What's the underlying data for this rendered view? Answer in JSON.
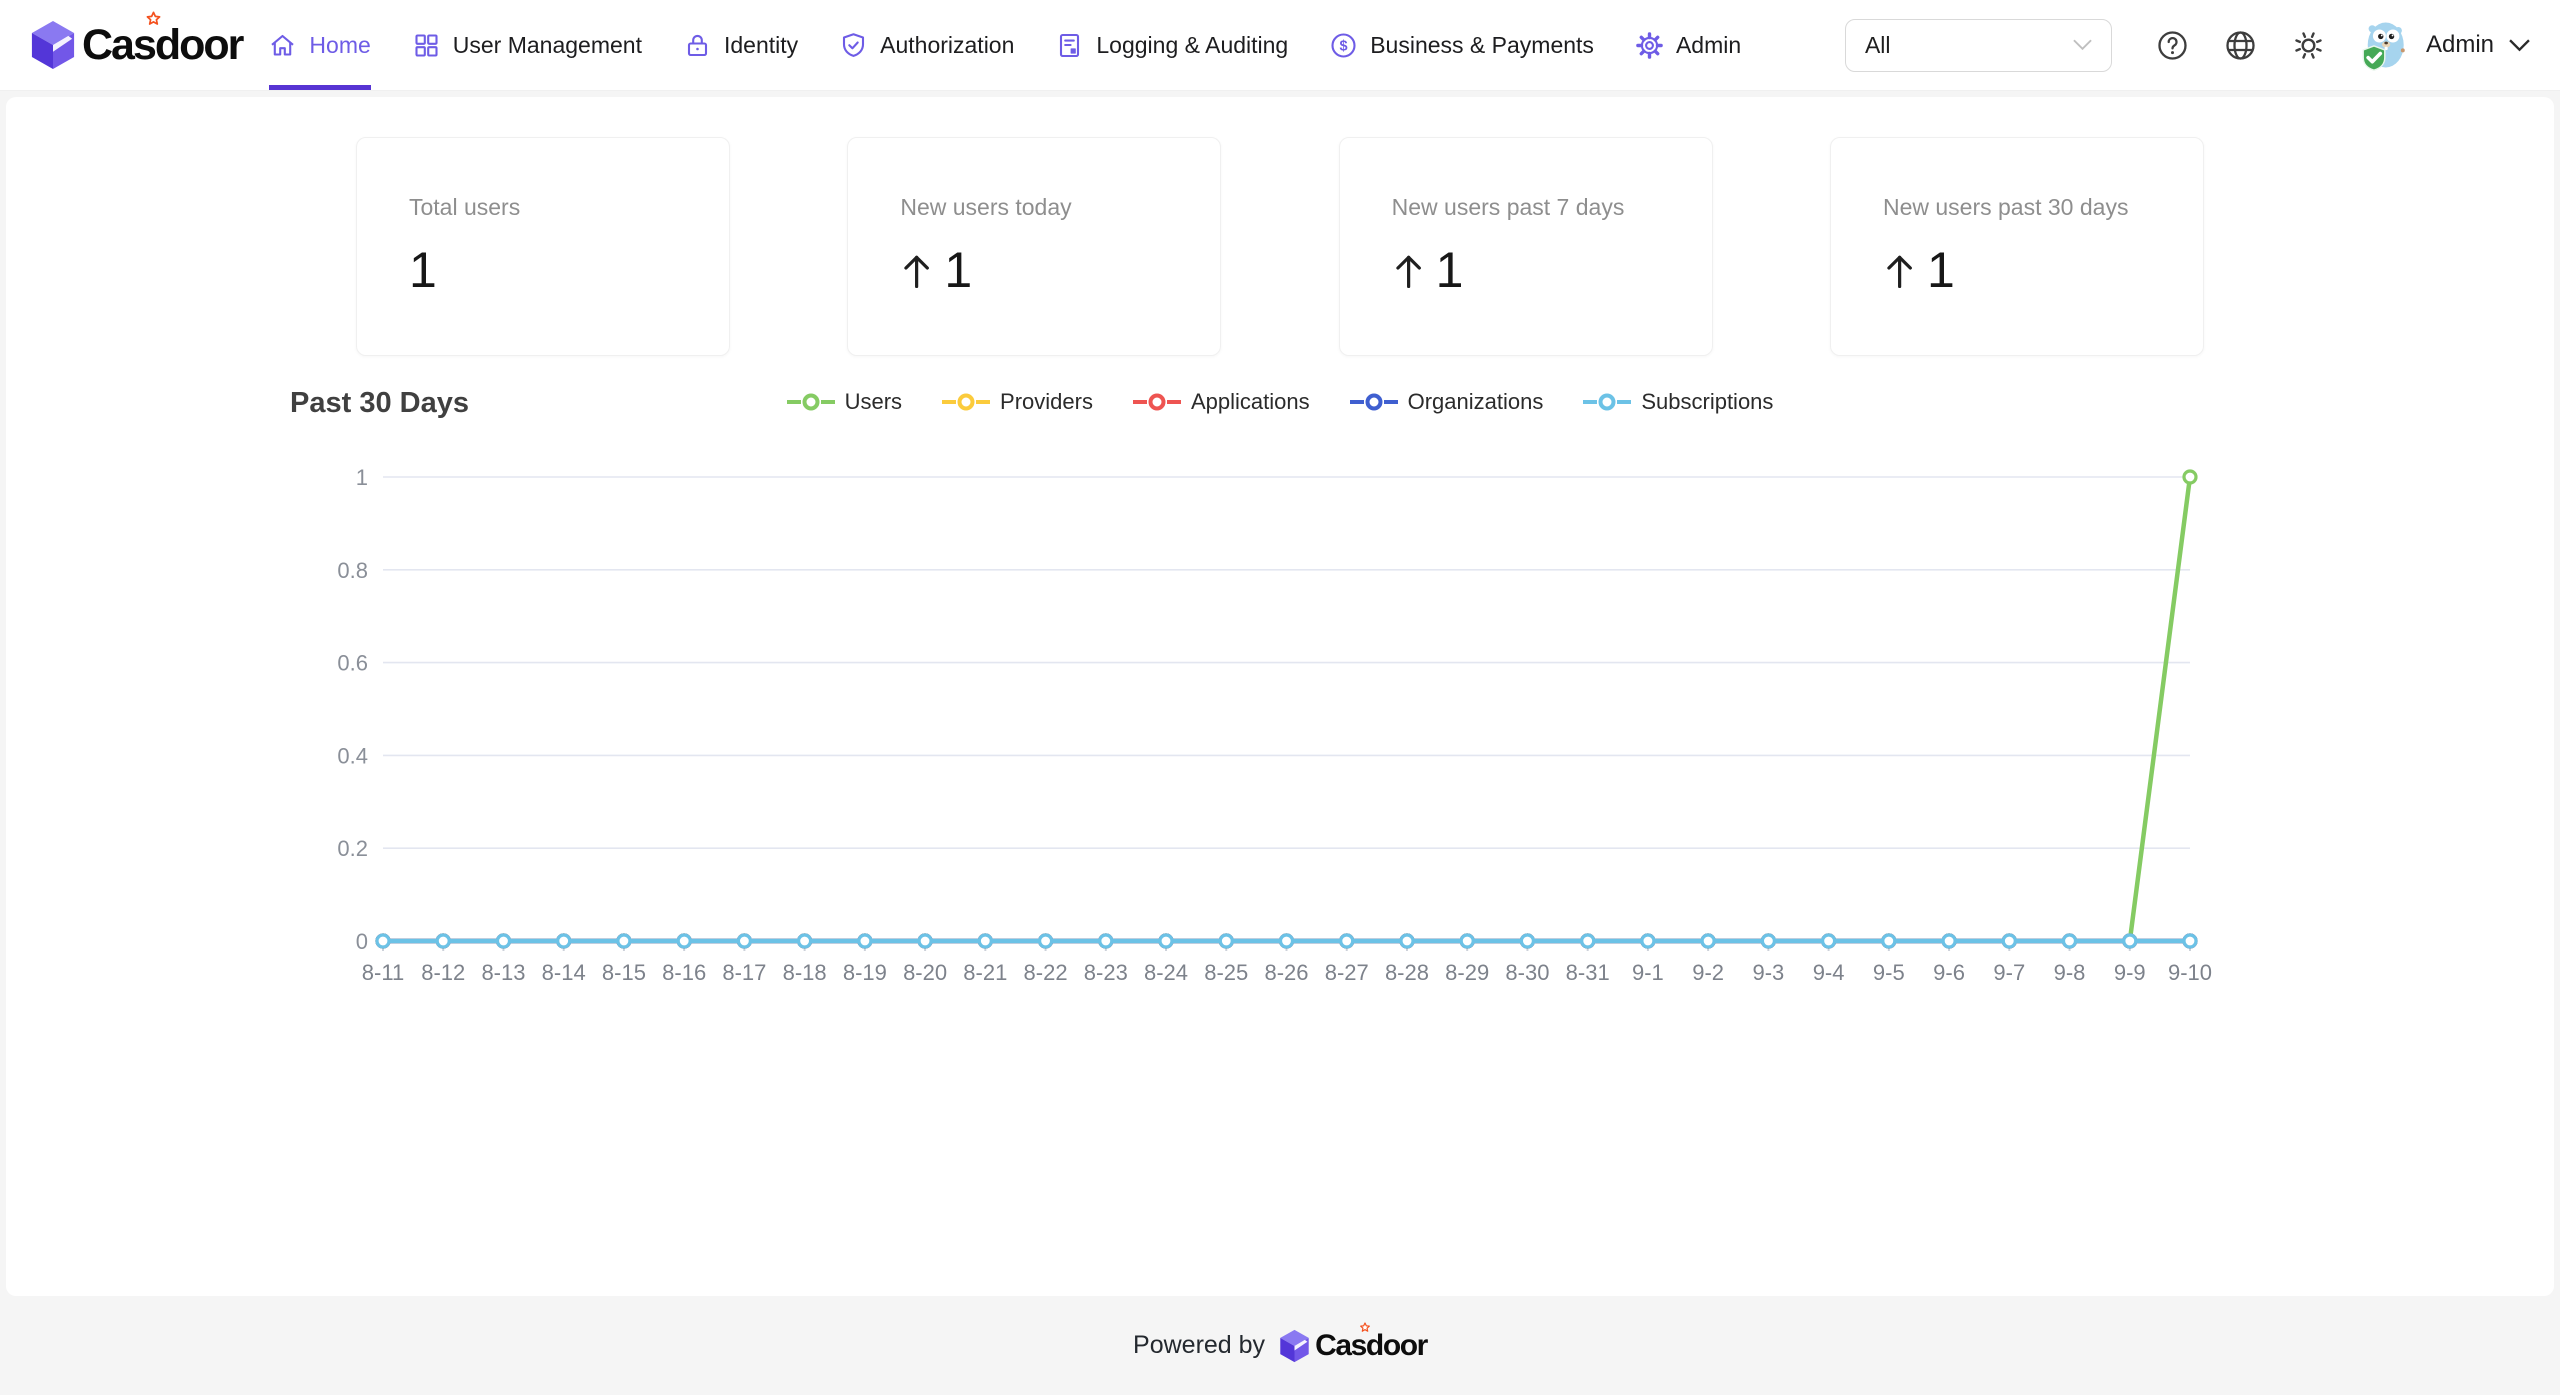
{
  "brand": {
    "name": "Casdoor",
    "accent": "#6e5ce6",
    "ink_bar_color": "#5734d3",
    "star_color": "#f4511e"
  },
  "nav": {
    "items": [
      {
        "label": "Home",
        "icon": "home-icon",
        "active": true
      },
      {
        "label": "User Management",
        "icon": "appstore-icon",
        "active": false
      },
      {
        "label": "Identity",
        "icon": "lock-icon",
        "active": false
      },
      {
        "label": "Authorization",
        "icon": "shield-check-icon",
        "active": false
      },
      {
        "label": "Logging & Auditing",
        "icon": "audit-icon",
        "active": false
      },
      {
        "label": "Business & Payments",
        "icon": "dollar-circle-icon",
        "active": false
      },
      {
        "label": "Admin",
        "icon": "gear-icon",
        "active": false
      }
    ]
  },
  "topbar": {
    "org_select": {
      "value": "All"
    },
    "icons": [
      {
        "name": "help-icon"
      },
      {
        "name": "language-globe-icon"
      },
      {
        "name": "theme-sun-icon"
      }
    ],
    "user": {
      "name": "Admin",
      "avatar": "gopher-shield-avatar"
    }
  },
  "cards": [
    {
      "label": "Total users",
      "value": "1",
      "arrow": false
    },
    {
      "label": "New users today",
      "value": "1",
      "arrow": true
    },
    {
      "label": "New users past 7 days",
      "value": "1",
      "arrow": true
    },
    {
      "label": "New users past 30 days",
      "value": "1",
      "arrow": true
    }
  ],
  "chart_data": {
    "type": "line",
    "title": "Past 30 Days",
    "categories": [
      "8-11",
      "8-12",
      "8-13",
      "8-14",
      "8-15",
      "8-16",
      "8-17",
      "8-18",
      "8-19",
      "8-20",
      "8-21",
      "8-22",
      "8-23",
      "8-24",
      "8-25",
      "8-26",
      "8-27",
      "8-28",
      "8-29",
      "8-30",
      "8-31",
      "9-1",
      "9-2",
      "9-3",
      "9-4",
      "9-5",
      "9-6",
      "9-7",
      "9-8",
      "9-9",
      "9-10"
    ],
    "series": [
      {
        "name": "Users",
        "color": "#85cb63",
        "values": [
          0,
          0,
          0,
          0,
          0,
          0,
          0,
          0,
          0,
          0,
          0,
          0,
          0,
          0,
          0,
          0,
          0,
          0,
          0,
          0,
          0,
          0,
          0,
          0,
          0,
          0,
          0,
          0,
          0,
          0,
          1
        ]
      },
      {
        "name": "Providers",
        "color": "#fbcb3c",
        "values": [
          0,
          0,
          0,
          0,
          0,
          0,
          0,
          0,
          0,
          0,
          0,
          0,
          0,
          0,
          0,
          0,
          0,
          0,
          0,
          0,
          0,
          0,
          0,
          0,
          0,
          0,
          0,
          0,
          0,
          0,
          0
        ]
      },
      {
        "name": "Applications",
        "color": "#ee5451",
        "values": [
          0,
          0,
          0,
          0,
          0,
          0,
          0,
          0,
          0,
          0,
          0,
          0,
          0,
          0,
          0,
          0,
          0,
          0,
          0,
          0,
          0,
          0,
          0,
          0,
          0,
          0,
          0,
          0,
          0,
          0,
          0
        ]
      },
      {
        "name": "Organizations",
        "color": "#3f5fd0",
        "values": [
          0,
          0,
          0,
          0,
          0,
          0,
          0,
          0,
          0,
          0,
          0,
          0,
          0,
          0,
          0,
          0,
          0,
          0,
          0,
          0,
          0,
          0,
          0,
          0,
          0,
          0,
          0,
          0,
          0,
          0,
          0
        ]
      },
      {
        "name": "Subscriptions",
        "color": "#6cc2e6",
        "values": [
          0,
          0,
          0,
          0,
          0,
          0,
          0,
          0,
          0,
          0,
          0,
          0,
          0,
          0,
          0,
          0,
          0,
          0,
          0,
          0,
          0,
          0,
          0,
          0,
          0,
          0,
          0,
          0,
          0,
          0,
          0
        ]
      }
    ],
    "ylim": [
      0,
      1
    ],
    "yticks": [
      0,
      0.2,
      0.4,
      0.6,
      0.8,
      1
    ],
    "grid": true,
    "legend_position": "top-center",
    "gridline_color": "#e3e6f0",
    "axis_label_color": "#8a8f98"
  },
  "footer": {
    "powered_by": "Powered by",
    "brand": "Casdoor"
  }
}
